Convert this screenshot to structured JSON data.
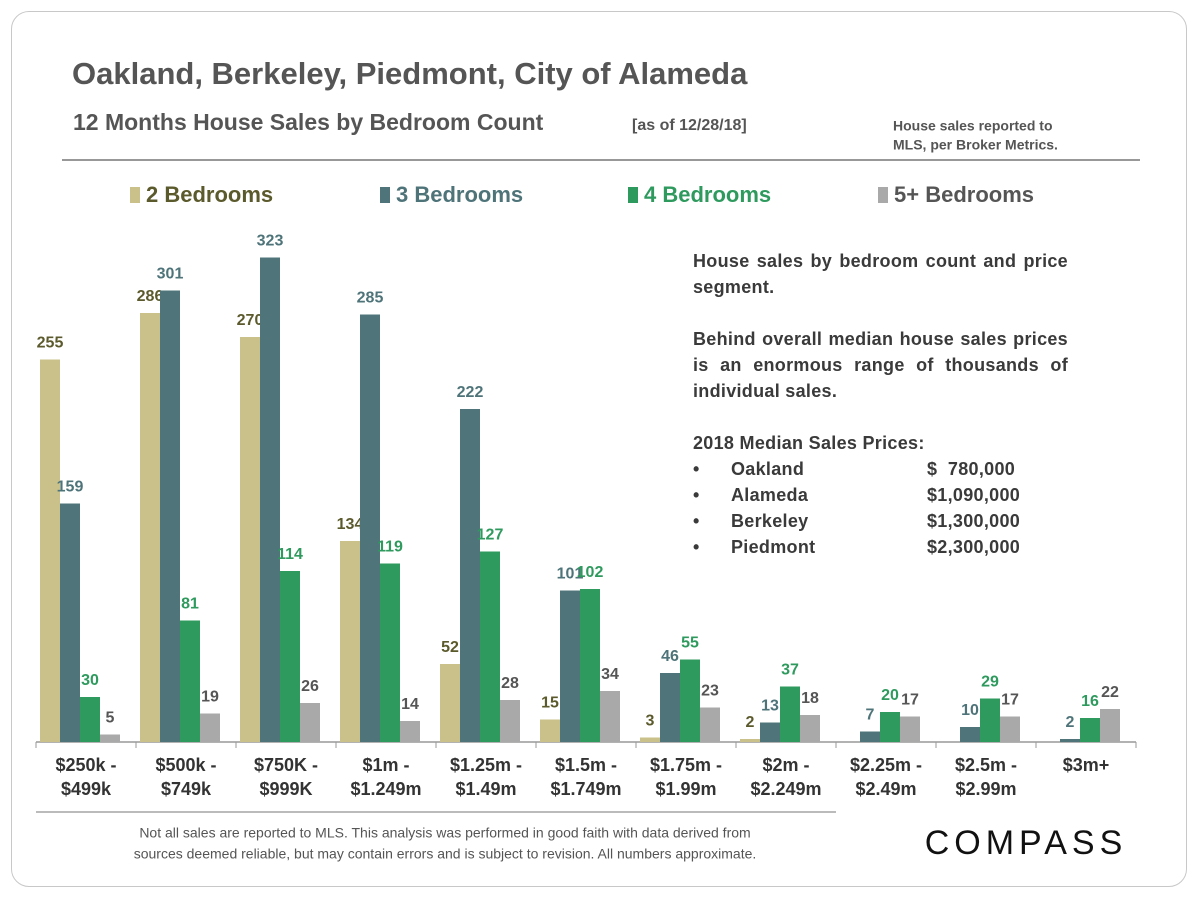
{
  "chart_data": {
    "type": "bar",
    "title": "Oakland, Berkeley, Piedmont, City of Alameda",
    "subtitle": "12 Months House Sales by Bedroom Count",
    "subtitle_note": "[as of 12/28/18]",
    "source_note": [
      "House sales reported to",
      "MLS, per Broker Metrics."
    ],
    "categories": [
      [
        "$250k -",
        "$499k"
      ],
      [
        "$500k -",
        "$749k"
      ],
      [
        "$750K -",
        "$999K"
      ],
      [
        "$1m -",
        "$1.249m"
      ],
      [
        "$1.25m -",
        "$1.49m"
      ],
      [
        "$1.5m -",
        "$1.749m"
      ],
      [
        "$1.75m -",
        "$1.99m"
      ],
      [
        "$2m -",
        "$2.249m"
      ],
      [
        "$2.25m -",
        "$2.49m"
      ],
      [
        "$2.5m -",
        "$2.99m"
      ],
      [
        "$3m+"
      ]
    ],
    "series": [
      {
        "name": "2 Bedrooms",
        "color": "#c9c08a",
        "label_color": "#5b5a2c",
        "values": [
          255,
          286,
          270,
          134,
          52,
          15,
          3,
          2,
          null,
          null,
          null
        ]
      },
      {
        "name": "3 Bedrooms",
        "color": "#4f7479",
        "label_color": "#4e7479",
        "values": [
          159,
          301,
          323,
          285,
          222,
          101,
          46,
          13,
          7,
          10,
          2
        ]
      },
      {
        "name": "4 Bedrooms",
        "color": "#2f9a5e",
        "label_color": "#2f9a5e",
        "values": [
          30,
          81,
          114,
          119,
          127,
          102,
          55,
          37,
          20,
          29,
          16
        ]
      },
      {
        "name": "5+ Bedrooms",
        "color": "#a9a9a9",
        "label_color": "#555555",
        "values": [
          5,
          19,
          26,
          14,
          28,
          34,
          23,
          18,
          17,
          17,
          22
        ]
      }
    ],
    "ylim": [
      0,
      350
    ],
    "annotation": {
      "paragraphs": [
        "House sales by bedroom count and price segment.",
        "Behind overall median house sales prices is an enormous range of thousands of individual sales."
      ],
      "list_title": "2018 Median  Sales Prices:",
      "list": [
        {
          "city": "Oakland",
          "price": "$  780,000"
        },
        {
          "city": "Alameda",
          "price": "$1,090,000"
        },
        {
          "city": "Berkeley",
          "price": "$1,300,000"
        },
        {
          "city": "Piedmont",
          "price": "$2,300,000"
        }
      ]
    },
    "footnote": [
      "Not all sales are reported to MLS. This analysis was performed in good faith with data derived from",
      "sources deemed reliable, but may contain errors and is subject to revision.  All numbers approximate."
    ],
    "logo": "COMPASS"
  }
}
